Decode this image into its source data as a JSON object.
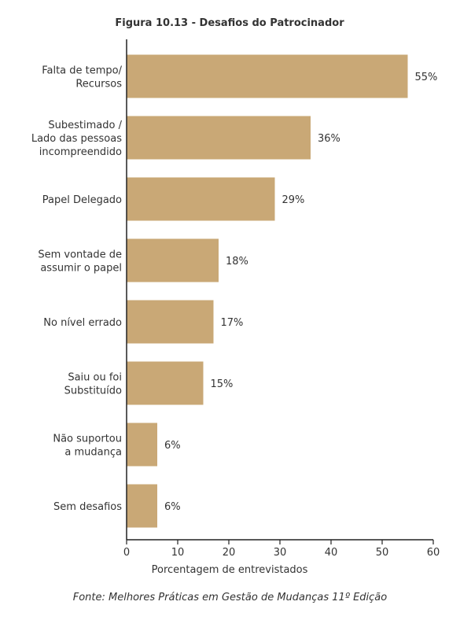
{
  "chart_data": {
    "type": "bar",
    "orientation": "horizontal",
    "title": "Figura 10.13 - Desafios do Patrocinador",
    "categories": [
      [
        "Falta de tempo/",
        "Recursos"
      ],
      [
        "Subestimado /",
        "Lado das pessoas",
        "incompreendido"
      ],
      [
        "Papel Delegado"
      ],
      [
        "Sem vontade de",
        "assumir o papel"
      ],
      [
        "No nível errado"
      ],
      [
        "Saiu ou foi",
        "Substituído"
      ],
      [
        "Não suportou",
        "a mudança"
      ],
      [
        "Sem desafios"
      ]
    ],
    "values": [
      55,
      36,
      29,
      18,
      17,
      15,
      6,
      6
    ],
    "value_labels": [
      "55%",
      "36%",
      "29%",
      "18%",
      "17%",
      "15%",
      "6%",
      "6%"
    ],
    "xlabel": "Porcentagem de entrevistados",
    "ylabel": "",
    "xlim": [
      0,
      60
    ],
    "xticks": [
      0,
      10,
      20,
      30,
      40,
      50,
      60
    ],
    "grid": false,
    "colors": {
      "bar": "#c9a876",
      "axis": "#222222",
      "text": "#333333"
    }
  },
  "source": "Fonte: Melhores Práticas em Gestão de Mudanças 11º Edição"
}
